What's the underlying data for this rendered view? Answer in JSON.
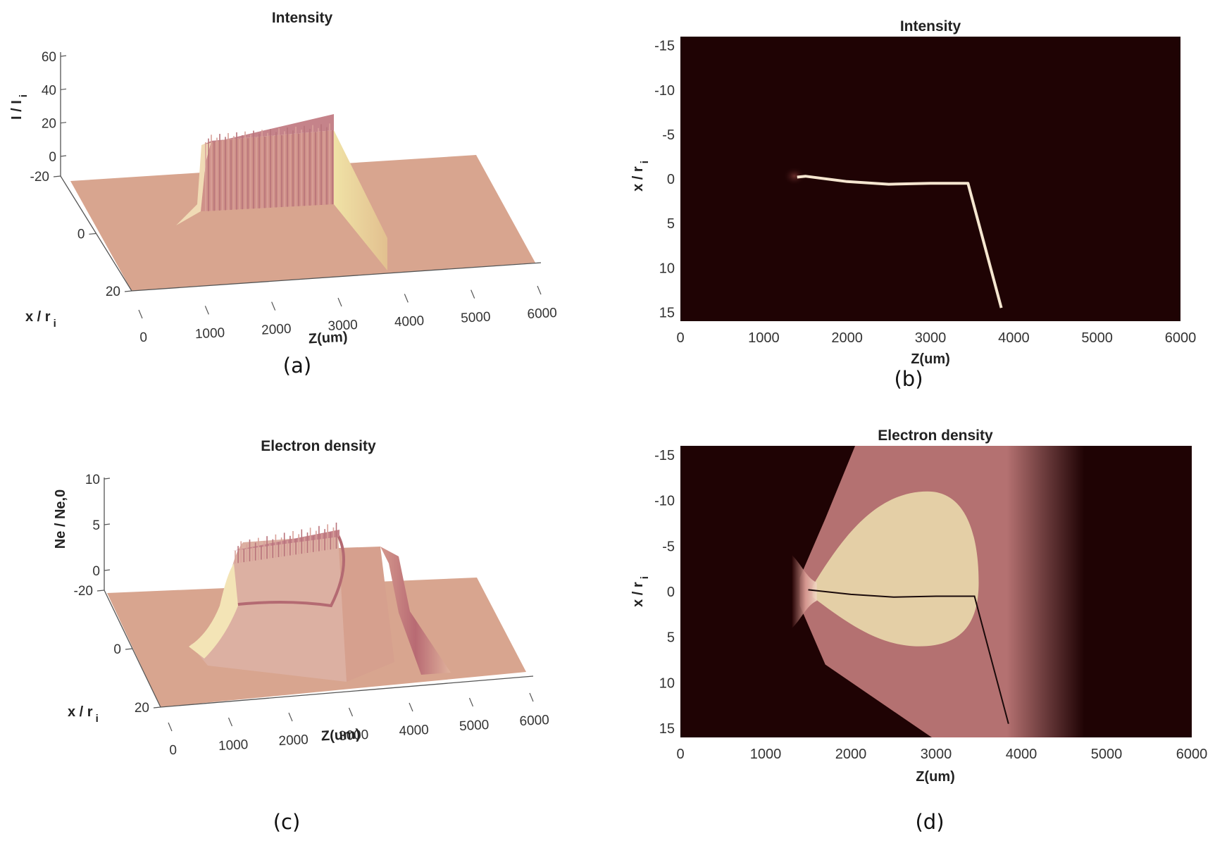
{
  "colors": {
    "dark_background": "#1f0304",
    "surface": "#d8a58f",
    "surface_light": "#efe3a8",
    "surface_ridge": "#c98a82",
    "plateau_density": "#b47171",
    "density_core": "#e4cfa6",
    "beam": "#f5e6d0",
    "axis": "#555555"
  },
  "chart_data": [
    {
      "id": "a",
      "type": "surface3d",
      "title": "Intensity",
      "caption": "(a)",
      "xlabel": "Z(um)",
      "ylabel": "x / r",
      "ylabel_sub": "i",
      "zlabel": "I / I",
      "zlabel_sub": "i",
      "x_ticks": [
        "0",
        "1000",
        "2000",
        "3000",
        "4000",
        "5000",
        "6000"
      ],
      "y_ticks": [
        "-20",
        "0",
        "20"
      ],
      "z_ticks": [
        "0",
        "20",
        "40",
        "60"
      ],
      "xlim": [
        0,
        6000
      ],
      "ylim": [
        -20,
        20
      ],
      "zlim": [
        0,
        60
      ],
      "features": {
        "plateau_start_z": 1400,
        "plateau_end_z": 3450,
        "plateau_height": 40
      }
    },
    {
      "id": "b",
      "type": "heatmap",
      "title": "Intensity",
      "caption": "(b)",
      "xlabel": "Z(um)",
      "ylabel": "x / r",
      "ylabel_sub": "i",
      "x_ticks": [
        "0",
        "1000",
        "2000",
        "3000",
        "4000",
        "5000",
        "6000"
      ],
      "y_ticks": [
        "-15",
        "-10",
        "-5",
        "0",
        "5",
        "10",
        "15"
      ],
      "xlim": [
        0,
        6000
      ],
      "ylim": [
        -16,
        16
      ],
      "beam_path": [
        [
          1400,
          -0.2
        ],
        [
          1500,
          -0.3
        ],
        [
          2000,
          0.3
        ],
        [
          2500,
          0.6
        ],
        [
          3000,
          0.5
        ],
        [
          3450,
          0.5
        ],
        [
          3850,
          14.5
        ]
      ]
    },
    {
      "id": "c",
      "type": "surface3d",
      "title": "Electron density",
      "caption": "(c)",
      "xlabel": "Z(um)",
      "ylabel": "x / r",
      "ylabel_sub": "i",
      "zlabel": "Ne / Ne,0",
      "x_ticks": [
        "0",
        "1000",
        "2000",
        "3000",
        "4000",
        "5000",
        "6000"
      ],
      "y_ticks": [
        "-20",
        "0",
        "20"
      ],
      "z_ticks": [
        "0",
        "5",
        "10"
      ],
      "xlim": [
        0,
        6000
      ],
      "ylim": [
        -20,
        20
      ],
      "zlim": [
        0,
        10
      ],
      "features": {
        "front_z": 1400,
        "core_end_z": 3450,
        "plateau_end_z": 4650,
        "core_height": 5,
        "plateau_height": 1.5
      }
    },
    {
      "id": "d",
      "type": "heatmap",
      "title": "Electron density",
      "caption": "(d)",
      "xlabel": "Z(um)",
      "ylabel": "x / r",
      "ylabel_sub": "i",
      "x_ticks": [
        "0",
        "1000",
        "2000",
        "3000",
        "4000",
        "5000",
        "6000"
      ],
      "y_ticks": [
        "-15",
        "-10",
        "-5",
        "0",
        "5",
        "10",
        "15"
      ],
      "xlim": [
        0,
        6000
      ],
      "ylim": [
        -16,
        16
      ],
      "plateau_end_z": 4650,
      "beam_path": [
        [
          1500,
          -0.2
        ],
        [
          2000,
          0.3
        ],
        [
          2500,
          0.6
        ],
        [
          3000,
          0.5
        ],
        [
          3450,
          0.5
        ],
        [
          3850,
          14.5
        ]
      ]
    }
  ]
}
